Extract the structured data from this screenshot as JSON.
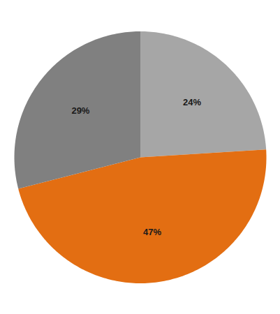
{
  "chart_data": {
    "type": "pie",
    "values": [
      24,
      47,
      29
    ],
    "value_labels": [
      "24%",
      "47%",
      "29%"
    ],
    "colors": [
      "#a6a6a6",
      "#e36e12",
      "#808080"
    ],
    "data_labels": true
  }
}
